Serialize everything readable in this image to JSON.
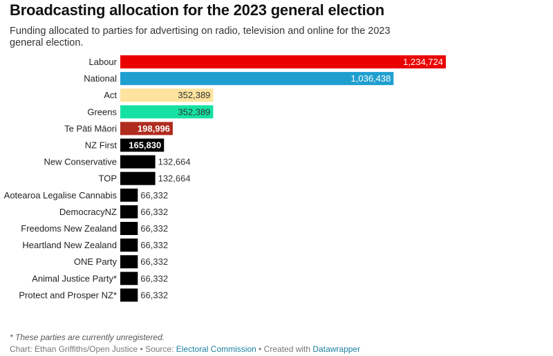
{
  "title": "Broadcasting allocation for the 2023 general election",
  "subtitle": "Funding allocated to parties for advertising on radio, television and online for the 2023 general election.",
  "footnote": "* These parties are currently unregistered.",
  "footer": {
    "chart_by": "Chart: Ethan Griffiths/Open Justice",
    "sep1": " • Source: ",
    "source": "Electoral Commission",
    "sep2": " • Created with ",
    "tool": "Datawrapper"
  },
  "chart_data": {
    "type": "bar",
    "orientation": "horizontal",
    "categories": [
      "Labour",
      "National",
      "Act",
      "Greens",
      "Te Pāti Māori",
      "NZ First",
      "New Conservative",
      "TOP",
      "Aotearoa Legalise Cannabis",
      "DemocracyNZ",
      "Freedoms New Zealand",
      "Heartland New Zealand",
      "ONE Party",
      "Animal Justice Party*",
      "Protect and Prosper NZ*"
    ],
    "values": [
      1234724,
      1036438,
      352389,
      352389,
      198996,
      165830,
      132664,
      132664,
      66332,
      66332,
      66332,
      66332,
      66332,
      66332,
      66332
    ],
    "value_labels": [
      "1,234,724",
      "1,036,438",
      "352,389",
      "352,389",
      "198,996",
      "165,830",
      "132,664",
      "132,664",
      "66,332",
      "66,332",
      "66,332",
      "66,332",
      "66,332",
      "66,332",
      "66,332"
    ],
    "colors": [
      "#ea0000",
      "#1f9fcf",
      "#fde39e",
      "#15e2a2",
      "#b02c1e",
      "#000000",
      "#000000",
      "#000000",
      "#000000",
      "#000000",
      "#000000",
      "#000000",
      "#000000",
      "#000000",
      "#000000"
    ],
    "label_colors": [
      "#ffffff",
      "#ffffff",
      "#333333",
      "#333333",
      "#ffffff",
      "#ffffff",
      "#333333",
      "#333333",
      "#333333",
      "#333333",
      "#333333",
      "#333333",
      "#333333",
      "#333333",
      "#333333"
    ],
    "label_inside": [
      true,
      true,
      true,
      true,
      true,
      true,
      false,
      false,
      false,
      false,
      false,
      false,
      false,
      false,
      false
    ],
    "xlim": [
      0,
      1234724
    ],
    "grid": false,
    "legend": "none"
  }
}
